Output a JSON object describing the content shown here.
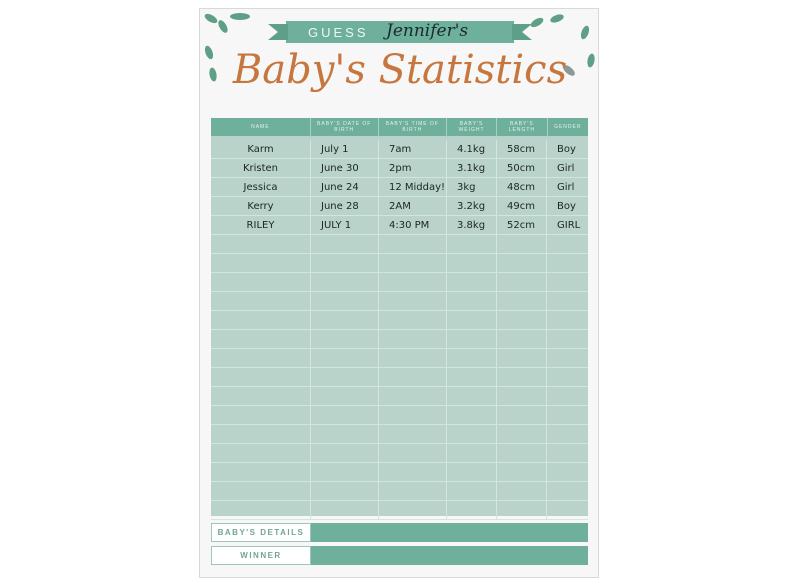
{
  "header": {
    "guess_label": "GUESS",
    "name": "Jennifer's",
    "title": "Baby's Statistics"
  },
  "table": {
    "columns": [
      "NAME",
      "BABY'S DATE OF BIRTH",
      "BABY'S TIME OF BIRTH",
      "BABY'S WEIGHT",
      "BABY'S LENGTH",
      "GENDER"
    ],
    "rows": [
      [
        "Karm",
        "July 1",
        "7am",
        "4.1kg",
        "58cm",
        "Boy"
      ],
      [
        "Kristen",
        "June 30",
        "2pm",
        "3.1kg",
        "50cm",
        "Girl"
      ],
      [
        "Jessica",
        "June 24",
        "12 Midday!",
        "3kg",
        "48cm",
        "Girl"
      ],
      [
        "Kerry",
        "June 28",
        "2AM",
        "3.2kg",
        "49cm",
        "Boy"
      ],
      [
        "RILEY",
        "JULY 1",
        "4:30 PM",
        "3.8kg",
        "52cm",
        "GIRL"
      ]
    ]
  },
  "footer": {
    "details_label": "BABY'S DETAILS",
    "winner_label": "WINNER"
  },
  "colors": {
    "teal": "#6fb09d",
    "table_bg": "#b9d3cb",
    "title": "#c5773f"
  }
}
